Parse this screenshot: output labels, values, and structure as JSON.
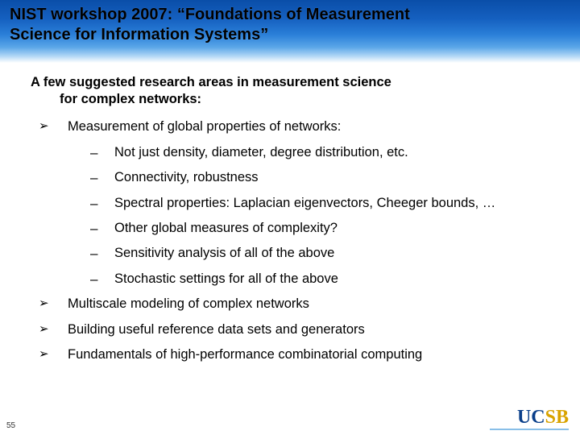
{
  "colors": {
    "header_gradient_top": "#0a4ea8",
    "header_gradient_mid": "#2a7fd8",
    "header_gradient_bottom": "#ffffff",
    "text": "#000000",
    "logo_blue": "#0a3f8a",
    "logo_gold": "#d9a300",
    "logo_rule": "#89bfe8",
    "background": "#ffffff"
  },
  "typography": {
    "title_size_pt": 20,
    "title_weight": "bold",
    "subhead_size_pt": 16.5,
    "subhead_weight": "bold",
    "body_size_pt": 16.5,
    "font_family": "Arial"
  },
  "slide": {
    "number": "55",
    "title_line1": "NIST workshop 2007:  “Foundations of Measurement",
    "title_line2": "Science for Information Systems”",
    "subhead_line1": "A few suggested research areas in measurement science",
    "subhead_line2": "for complex networks:",
    "bullets": [
      {
        "text": "Measurement of global properties of networks:",
        "sub": [
          "Not just density, diameter, degree distribution, etc.",
          "Connectivity, robustness",
          "Spectral properties:  Laplacian eigenvectors, Cheeger bounds, …",
          "Other global measures of complexity?",
          "Sensitivity analysis of all of the above",
          "Stochastic settings for all of the above"
        ]
      },
      {
        "text": "Multiscale modeling of complex networks"
      },
      {
        "text": "Building useful reference data sets and generators"
      },
      {
        "text": "Fundamentals of high-performance combinatorial computing"
      }
    ]
  },
  "logo": {
    "letters": [
      "U",
      "C",
      "S",
      "B"
    ],
    "name": "UCSB"
  }
}
